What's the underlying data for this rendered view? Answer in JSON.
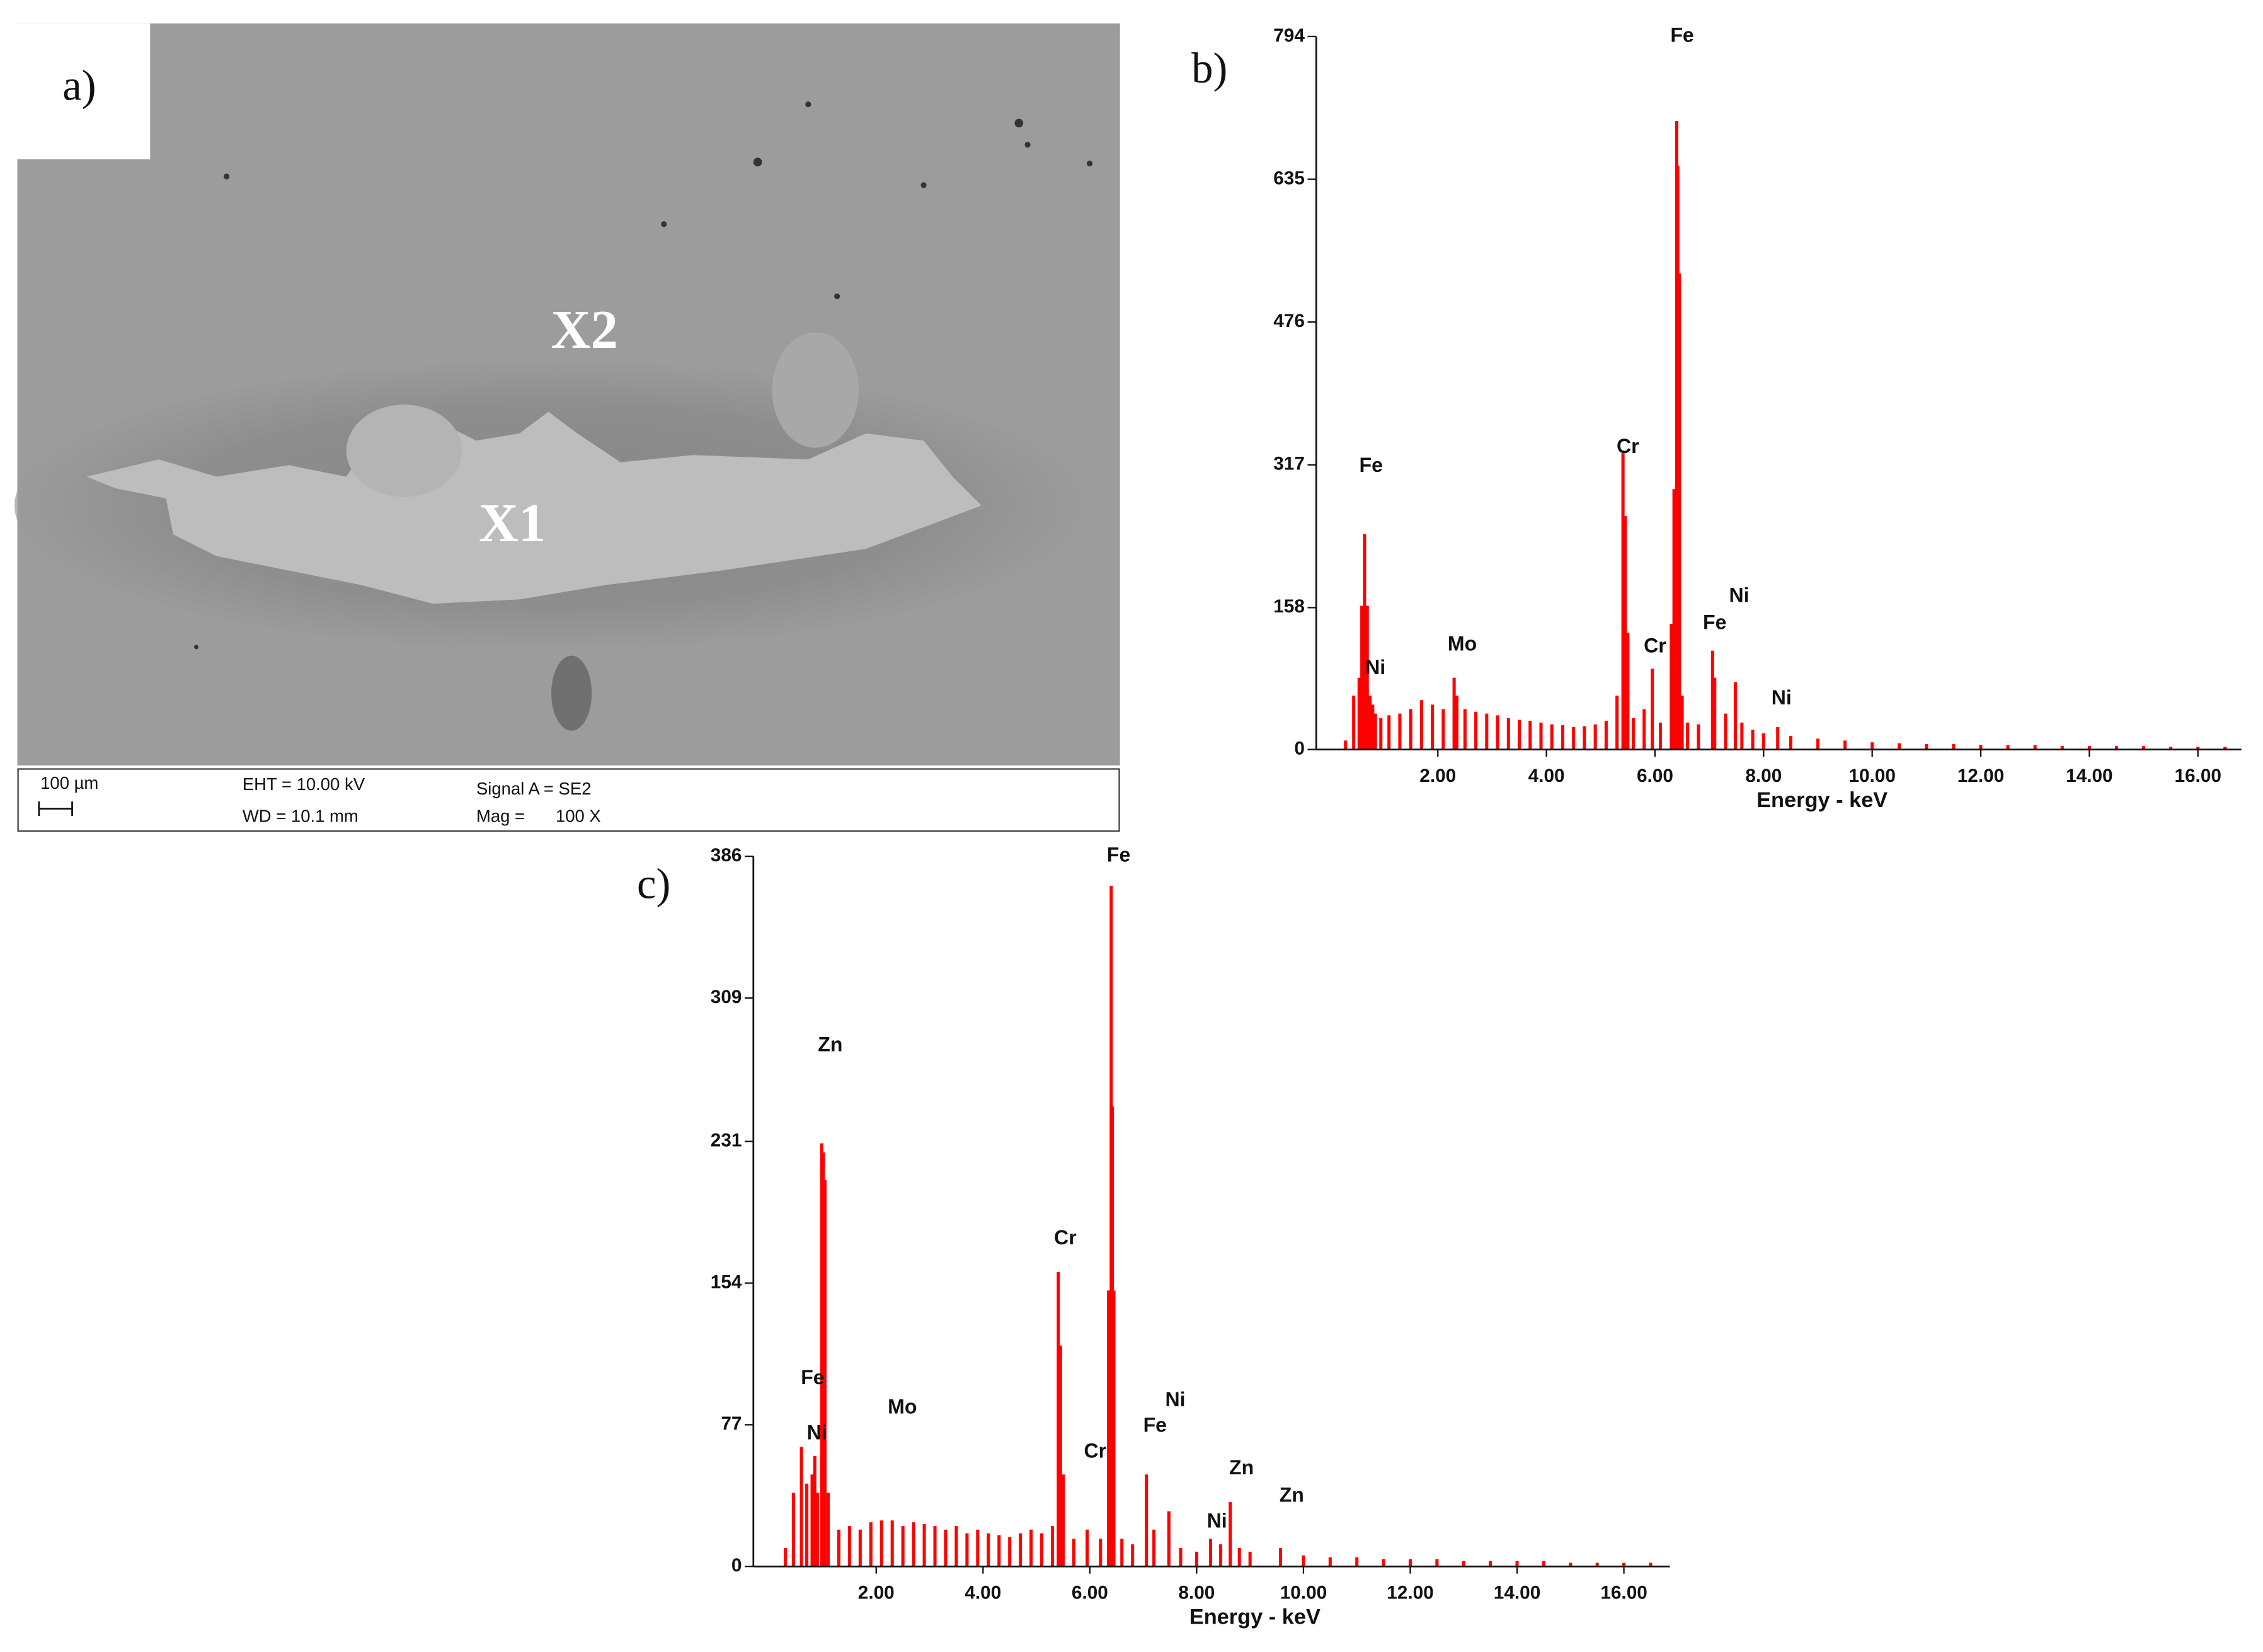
{
  "sem_image": {
    "panel_label": "a)",
    "labels": [
      "X2",
      "X1"
    ],
    "info": {
      "scale": "100 µm",
      "eht": "EHT = 10.00 kV",
      "wd": "WD = 10.1 mm",
      "signal": "Signal A = SE2",
      "mag_label": "Mag =",
      "mag_value": "100 X"
    }
  },
  "chart_data": [
    {
      "type": "bar",
      "panel_label": "b)",
      "x_label": "Energy - keV",
      "color": "#ff0000",
      "x": [
        0.3,
        0.45,
        0.55,
        0.6,
        0.65,
        0.7,
        0.75,
        0.8,
        0.85,
        0.95,
        1.1,
        1.3,
        1.5,
        1.7,
        1.9,
        2.1,
        2.3,
        2.35,
        2.5,
        2.7,
        2.9,
        3.1,
        3.3,
        3.5,
        3.7,
        3.9,
        4.1,
        4.3,
        4.5,
        4.7,
        4.9,
        5.1,
        5.3,
        5.41,
        5.45,
        5.5,
        5.6,
        5.8,
        5.95,
        6.1,
        6.3,
        6.35,
        6.4,
        6.42,
        6.45,
        6.5,
        6.6,
        6.8,
        7.06,
        7.1,
        7.3,
        7.48,
        7.6,
        7.8,
        8.0,
        8.26,
        8.5,
        9.0,
        9.5,
        10.0,
        10.5,
        11.0,
        11.5,
        12.0,
        12.5,
        13.0,
        13.5,
        14.0,
        14.5,
        15.0,
        15.5,
        16.0,
        16.5
      ],
      "values": [
        10,
        60,
        80,
        160,
        240,
        160,
        60,
        50,
        40,
        35,
        38,
        40,
        45,
        55,
        50,
        45,
        80,
        60,
        45,
        42,
        40,
        38,
        35,
        33,
        32,
        30,
        28,
        27,
        25,
        26,
        28,
        32,
        60,
        330,
        260,
        130,
        35,
        45,
        90,
        30,
        140,
        290,
        700,
        650,
        530,
        60,
        30,
        28,
        110,
        80,
        40,
        75,
        30,
        22,
        18,
        25,
        15,
        12,
        10,
        8,
        7,
        6,
        6,
        5,
        5,
        5,
        4,
        4,
        4,
        4,
        3,
        3,
        3
      ],
      "xlim": [
        -0.24,
        16.8
      ],
      "ylim": [
        0,
        794
      ],
      "xticks": [
        {
          "value": 2,
          "label": "2.00"
        },
        {
          "value": 4,
          "label": "4.00"
        },
        {
          "value": 6,
          "label": "6.00"
        },
        {
          "value": 8,
          "label": "8.00"
        },
        {
          "value": 10,
          "label": "10.00"
        },
        {
          "value": 12,
          "label": "12.00"
        },
        {
          "value": 14,
          "label": "14.00"
        },
        {
          "value": 16,
          "label": "16.00"
        }
      ],
      "yticks": [
        0,
        158,
        317,
        476,
        635,
        794
      ],
      "annotations": [
        {
          "text": "Fe",
          "x": 0.77,
          "y": 315
        },
        {
          "text": "Ni",
          "x": 0.85,
          "y": 90
        },
        {
          "text": "Mo",
          "x": 2.45,
          "y": 116
        },
        {
          "text": "Cr",
          "x": 5.5,
          "y": 336
        },
        {
          "text": "Fe",
          "x": 6.5,
          "y": 794
        },
        {
          "text": "Cr",
          "x": 6.0,
          "y": 114
        },
        {
          "text": "Ni",
          "x": 7.55,
          "y": 170
        },
        {
          "text": "Fe",
          "x": 7.1,
          "y": 140
        },
        {
          "text": "Ni",
          "x": 8.33,
          "y": 56
        }
      ]
    },
    {
      "type": "bar",
      "panel_label": "c)",
      "x_label": "Energy - keV",
      "color": "#ff0000",
      "x": [
        0.3,
        0.45,
        0.6,
        0.7,
        0.8,
        0.85,
        0.9,
        0.98,
        1.01,
        1.04,
        1.1,
        1.3,
        1.5,
        1.7,
        1.9,
        2.1,
        2.3,
        2.5,
        2.7,
        2.9,
        3.1,
        3.3,
        3.5,
        3.7,
        3.9,
        4.1,
        4.3,
        4.5,
        4.7,
        4.9,
        5.1,
        5.3,
        5.41,
        5.45,
        5.5,
        5.7,
        5.95,
        6.2,
        6.35,
        6.4,
        6.42,
        6.45,
        6.6,
        6.8,
        7.06,
        7.2,
        7.48,
        7.7,
        8.0,
        8.26,
        8.45,
        8.63,
        8.8,
        9.0,
        9.57,
        10.0,
        10.5,
        11.0,
        11.5,
        12.0,
        12.5,
        13.0,
        13.5,
        14.0,
        14.5,
        15.0,
        15.5,
        16.0,
        16.5
      ],
      "values": [
        10,
        40,
        65,
        45,
        50,
        60,
        40,
        230,
        225,
        210,
        40,
        20,
        22,
        20,
        24,
        25,
        25,
        22,
        24,
        23,
        22,
        20,
        22,
        18,
        20,
        18,
        17,
        16,
        18,
        20,
        18,
        22,
        160,
        120,
        50,
        15,
        20,
        15,
        150,
        370,
        250,
        150,
        15,
        12,
        50,
        20,
        30,
        10,
        8,
        15,
        12,
        35,
        10,
        8,
        10,
        6,
        5,
        5,
        4,
        4,
        4,
        3,
        3,
        3,
        3,
        2,
        2,
        2,
        2
      ],
      "xlim": [
        -0.3,
        16.86
      ],
      "ylim": [
        0,
        386
      ],
      "xticks": [
        {
          "value": 2,
          "label": "2.00"
        },
        {
          "value": 4,
          "label": "4.00"
        },
        {
          "value": 6,
          "label": "6.00"
        },
        {
          "value": 8,
          "label": "8.00"
        },
        {
          "value": 10,
          "label": "10.00"
        },
        {
          "value": 12,
          "label": "12.00"
        },
        {
          "value": 14,
          "label": "14.00"
        },
        {
          "value": 16,
          "label": "16.00"
        }
      ],
      "yticks": [
        0,
        77,
        154,
        231,
        309,
        386
      ],
      "annotations": [
        {
          "text": "Fe",
          "x": 6.54,
          "y": 386
        },
        {
          "text": "Zn",
          "x": 1.14,
          "y": 283
        },
        {
          "text": "Cr",
          "x": 5.54,
          "y": 178
        },
        {
          "text": "Fe",
          "x": 0.81,
          "y": 102
        },
        {
          "text": "Ni",
          "x": 0.89,
          "y": 72
        },
        {
          "text": "Mo",
          "x": 2.49,
          "y": 86
        },
        {
          "text": "Cr",
          "x": 6.1,
          "y": 62
        },
        {
          "text": "Ni",
          "x": 7.6,
          "y": 90
        },
        {
          "text": "Fe",
          "x": 7.22,
          "y": 76
        },
        {
          "text": "Zn",
          "x": 8.84,
          "y": 53
        },
        {
          "text": "Zn",
          "x": 9.78,
          "y": 38
        },
        {
          "text": "Ni",
          "x": 8.38,
          "y": 24
        }
      ]
    }
  ]
}
